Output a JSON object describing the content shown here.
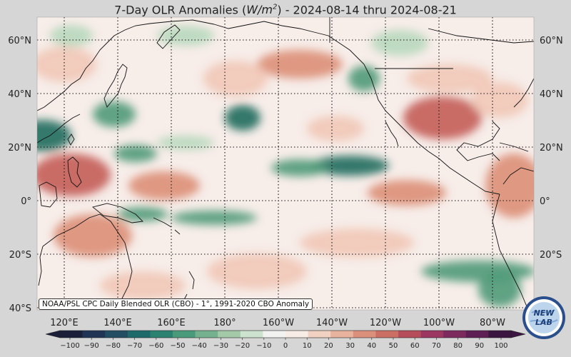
{
  "title": {
    "prefix": "7-Day OLR Anomalies (",
    "unit_base": "W/m",
    "unit_exp": "2",
    "suffix": ") - 2024-08-14 thru 2024-08-21"
  },
  "map": {
    "lat_labels_left": [
      "60°N",
      "40°N",
      "20°N",
      "0°",
      "20°S",
      "40°S"
    ],
    "lat_labels_right": [
      "60°N",
      "40°N",
      "20°N",
      "0°",
      "20°S"
    ],
    "lon_labels": [
      "120°E",
      "140°E",
      "160°E",
      "180°",
      "160°W",
      "140°W",
      "120°W",
      "100°W",
      "80°W"
    ],
    "credit": "NOAA/PSL CPC Daily Blended OLR (CBO) - 1°, 1991-2020 CBO Anomaly",
    "colors": {
      "negative_strong": "#1f6b5c",
      "negative_mid": "#4f9a78",
      "negative_weak": "#b7d8bc",
      "neutral": "#f6efec",
      "positive_weak": "#f1c8b7",
      "positive_mid": "#dc8f77",
      "positive_strong": "#c45d56"
    }
  },
  "colorbar": {
    "ticks": [
      "−100",
      "−90",
      "−80",
      "−70",
      "−60",
      "−50",
      "−40",
      "−30",
      "−20",
      "−10",
      "0",
      "10",
      "20",
      "30",
      "40",
      "50",
      "60",
      "70",
      "80",
      "90",
      "100"
    ],
    "colors": [
      "#1b1f3a",
      "#223456",
      "#224d63",
      "#1e6a6b",
      "#2b8270",
      "#4a9a7c",
      "#75b18f",
      "#a3c9a8",
      "#cde2cf",
      "#f2f3f0",
      "#f8ece6",
      "#f1d1c1",
      "#e8b39e",
      "#db907c",
      "#cb6e64",
      "#b54e5a",
      "#9b3760",
      "#7d2a5f",
      "#5e1f55",
      "#3b1640"
    ]
  },
  "logo": {
    "top": "NEW",
    "bottom": "LAB"
  }
}
